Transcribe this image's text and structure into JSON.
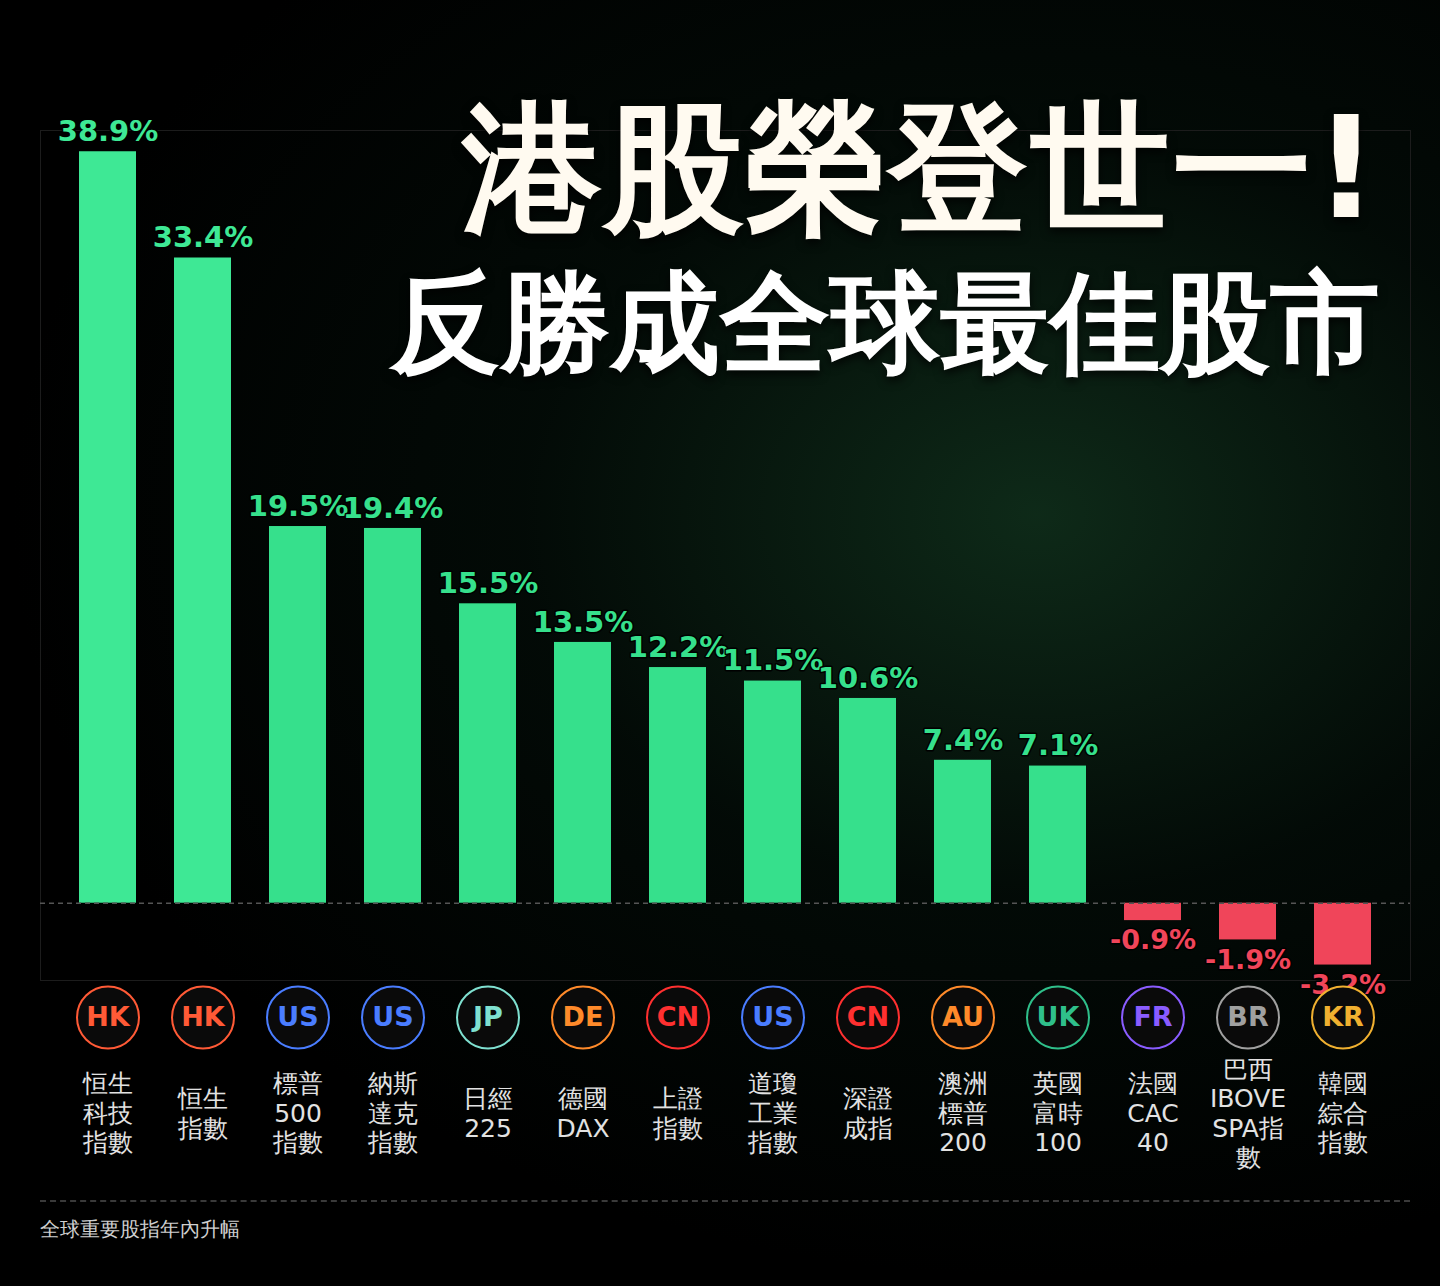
{
  "chart_data": {
    "type": "bar",
    "title": "港股榮登世一!",
    "subtitle": "反勝成全球最佳股市",
    "caption": "全球重要股指年內升幅",
    "categories": [
      "恒生\n科技\n指數",
      "恒生\n指數",
      "標普\n500\n指數",
      "納斯\n達克\n指數",
      "日經\n225",
      "德國\nDAX",
      "上證\n指數",
      "道瓊\n工業\n指數",
      "深證\n成指",
      "澳洲\n標普\n200",
      "英國\n富時\n100",
      "法國\nCAC\n40",
      "巴西\nIBOVE\nSPA指\n數",
      "韓國\n綜合\n指數"
    ],
    "region_labels": [
      "HK",
      "HK",
      "US",
      "US",
      "JP",
      "DE",
      "CN",
      "US",
      "CN",
      "AU",
      "UK",
      "FR",
      "BR",
      "KR"
    ],
    "values": [
      38.9,
      33.4,
      19.5,
      19.4,
      15.5,
      13.5,
      12.2,
      11.5,
      10.6,
      7.4,
      7.1,
      -0.9,
      -1.9,
      -3.2
    ],
    "value_labels": [
      "38.9%",
      "33.4%",
      "19.5%",
      "19.4%",
      "15.5%",
      "13.5%",
      "12.2%",
      "11.5%",
      "10.6%",
      "7.4%",
      "7.1%",
      "-0.9%",
      "-1.9%",
      "-3.2%"
    ],
    "colors": [
      "#3ee895",
      "#3ee895",
      "#36e08c",
      "#36e08c",
      "#36e08c",
      "#36e08c",
      "#36e08c",
      "#36e08c",
      "#36e08c",
      "#36e08c",
      "#36e08c",
      "#f0455a",
      "#f0455a",
      "#f0455a"
    ],
    "ylim": [
      -4,
      40
    ],
    "grid": false,
    "data_labels": true,
    "tick_labels": false
  }
}
